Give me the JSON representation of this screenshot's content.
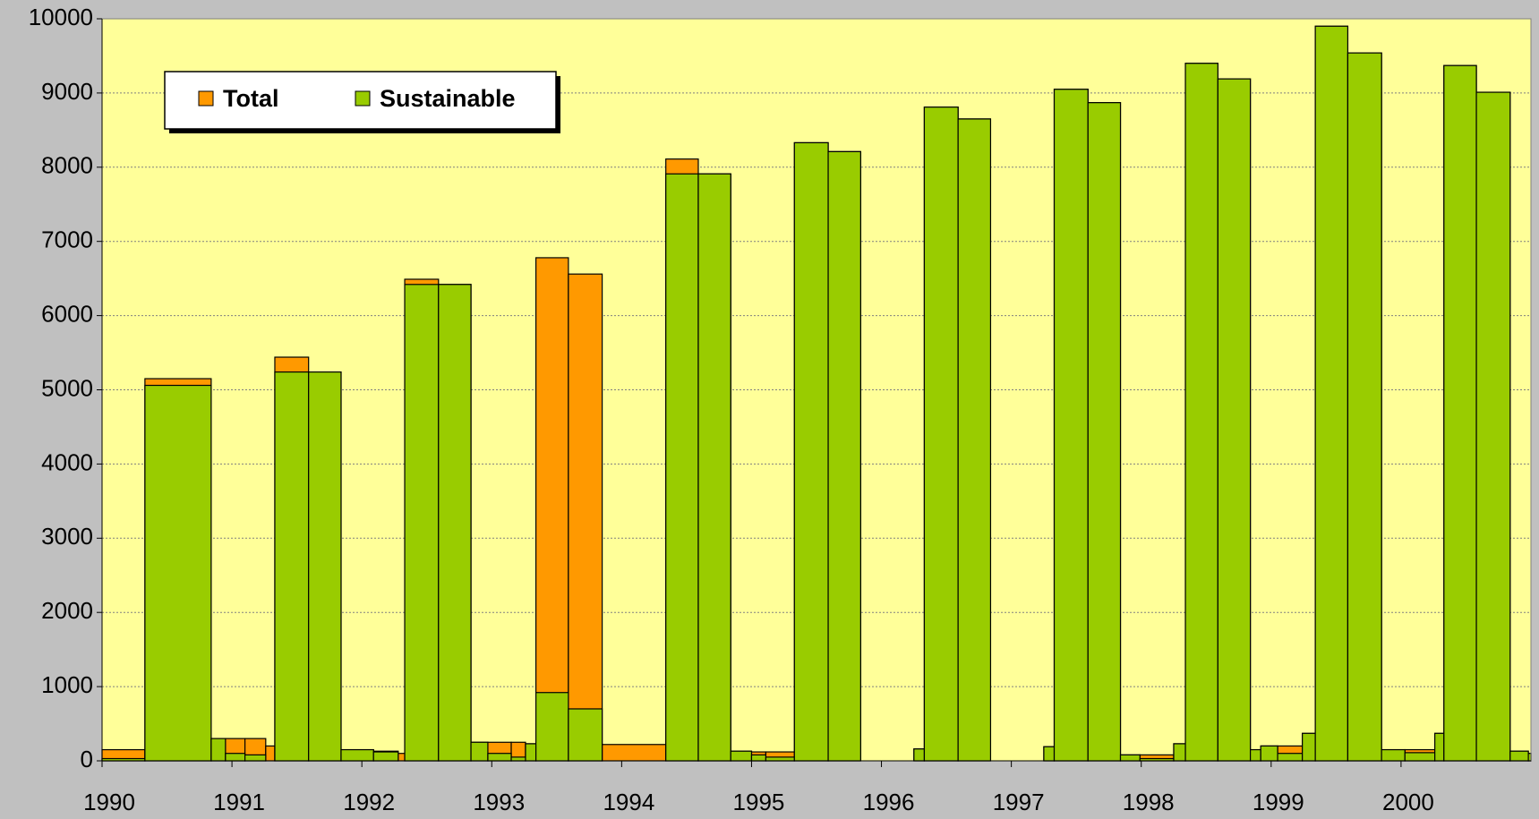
{
  "chart_data": {
    "type": "step-area",
    "x": [
      1990.0,
      1990.33,
      1990.84,
      1990.95,
      1991.1,
      1991.26,
      1991.33,
      1991.59,
      1991.84,
      1992.09,
      1992.28,
      1992.33,
      1992.59,
      1992.84,
      1992.97,
      1993.15,
      1993.26,
      1993.34,
      1993.59,
      1993.85,
      1994.34,
      1994.59,
      1994.84,
      1995.0,
      1995.11,
      1995.33,
      1995.59,
      1995.84,
      1996.25,
      1996.33,
      1996.59,
      1996.84,
      1997.25,
      1997.33,
      1997.59,
      1997.84,
      1997.99,
      1998.25,
      1998.34,
      1998.59,
      1998.84,
      1998.92,
      1999.05,
      1999.24,
      1999.34,
      1999.59,
      1999.85,
      2000.03,
      2000.26,
      2000.33,
      2000.58,
      2000.84,
      2000.98
    ],
    "series": [
      {
        "name": "Total",
        "color": "#ff9900",
        "values": [
          150,
          5150,
          300,
          300,
          300,
          200,
          5440,
          5240,
          150,
          130,
          100,
          6490,
          6420,
          250,
          250,
          250,
          230,
          6780,
          6560,
          220,
          8110,
          7910,
          130,
          120,
          120,
          8330,
          8210,
          0,
          160,
          8810,
          8650,
          0,
          190,
          9050,
          8870,
          80,
          80,
          230,
          9400,
          9190,
          150,
          200,
          200,
          370,
          9900,
          9540,
          150,
          150,
          370,
          9370,
          9010,
          130,
          100
        ]
      },
      {
        "name": "Sustainable",
        "color": "#99cc00",
        "values": [
          30,
          5060,
          300,
          100,
          80,
          0,
          5240,
          5240,
          150,
          120,
          0,
          6420,
          6420,
          250,
          100,
          50,
          230,
          920,
          700,
          0,
          7910,
          7910,
          130,
          80,
          50,
          8330,
          8210,
          0,
          160,
          8810,
          8650,
          0,
          190,
          9050,
          8870,
          80,
          30,
          230,
          9400,
          9190,
          150,
          200,
          100,
          370,
          9900,
          9540,
          150,
          110,
          370,
          9370,
          9010,
          130,
          100
        ]
      }
    ],
    "xlim": [
      1990,
      2001
    ],
    "xticks": [
      1990,
      1991,
      1992,
      1993,
      1994,
      1995,
      1996,
      1997,
      1998,
      1999,
      2000
    ],
    "ylim": [
      0,
      10000
    ],
    "yticks": [
      0,
      1000,
      2000,
      3000,
      4000,
      5000,
      6000,
      7000,
      8000,
      9000,
      10000
    ],
    "grid": true
  }
}
